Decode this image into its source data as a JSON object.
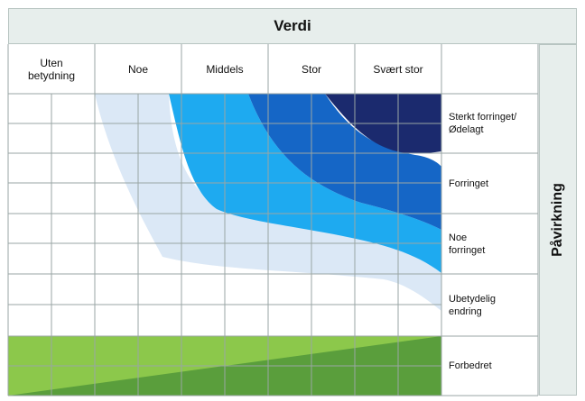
{
  "title": "Verdi",
  "side_label": "Påvirkning",
  "columns": [
    {
      "label": "Uten\nbetydning"
    },
    {
      "label": "Noe"
    },
    {
      "label": "Middels"
    },
    {
      "label": "Stor"
    },
    {
      "label": "Svært stor"
    }
  ],
  "rows": [
    {
      "label": "Sterkt forringet/\nØdelagt"
    },
    {
      "label": "Forringet"
    },
    {
      "label": "Noe\nforringet"
    },
    {
      "label": "Ubetydelig\nendring"
    },
    {
      "label": "Forbedret"
    }
  ],
  "colors": {
    "header_bg": "#e7eeec",
    "grid_line": "#9aa6a4",
    "band_light": "#dbe8f6",
    "band_cyan": "#1eaaf0",
    "band_blue": "#1566c6",
    "band_navy": "#1b2a6e",
    "improved_light": "#8cc84b",
    "improved_dark": "#5a9e3c"
  }
}
